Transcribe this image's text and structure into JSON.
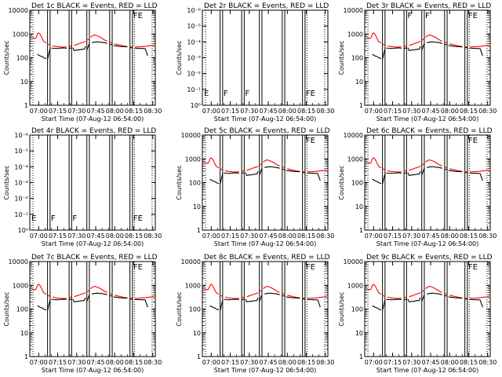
{
  "chart_data": [
    {
      "type": "line",
      "title": "Det 1c BLACK = Events, RED = LLD",
      "ylabel": "Counts/sec",
      "xlabel": "Start Time (07-Aug-12 06:54:00)",
      "yscale": "log",
      "ylim": [
        1,
        10000
      ],
      "ytick_labels": [
        "1",
        "10",
        "100",
        "1000",
        "10000"
      ],
      "xtick_labels": [
        "07:00",
        "07:15",
        "07:30",
        "07:45",
        "08:00",
        "08:15",
        "08:30"
      ],
      "event_labels": [
        "",
        "",
        "",
        "",
        "",
        "",
        "FE"
      ],
      "has_data": true,
      "series": [
        {
          "name": "Events",
          "color": "#000000"
        },
        {
          "name": "LLD",
          "color": "#ff0000"
        }
      ]
    },
    {
      "type": "line",
      "title": "Det 2r BLACK = Events, RED = LLD",
      "ylabel": "Counts/sec",
      "xlabel": "Start Time (07-Aug-12 06:54:00)",
      "yscale": "log",
      "ylim": [
        1,
        1e-06
      ],
      "ytick_labels": [
        "10⁰",
        "10⁻¹",
        "10⁻²",
        "10⁻³",
        "10⁻⁴",
        "10⁻⁵",
        "10⁻⁶"
      ],
      "xtick_labels": [
        "07:00",
        "07:15",
        "07:30",
        "07:45",
        "08:00",
        "08:15",
        "08:30"
      ],
      "event_labels": [
        "E",
        "F",
        "",
        "F",
        "",
        "",
        "FE"
      ],
      "has_data": false,
      "series": []
    },
    {
      "type": "line",
      "title": "Det 3r BLACK = Events, RED = LLD",
      "ylabel": "Counts/sec",
      "xlabel": "Start Time (07-Aug-12 06:54:00)",
      "yscale": "log",
      "ylim": [
        1,
        10000
      ],
      "ytick_labels": [
        "1",
        "10",
        "100",
        "1000",
        "10000"
      ],
      "xtick_labels": [
        "07:00",
        "07:15",
        "07:30",
        "07:45",
        "08:00",
        "08:15",
        "08:30"
      ],
      "event_labels": [
        "",
        "",
        "",
        "F",
        "F",
        "",
        "FE"
      ],
      "has_data": true,
      "series": [
        {
          "name": "Events",
          "color": "#000000"
        },
        {
          "name": "LLD",
          "color": "#ff0000"
        }
      ]
    },
    {
      "type": "line",
      "title": "Det 4r BLACK = Events, RED = LLD",
      "ylabel": "Counts/sec",
      "xlabel": "Start Time (07-Aug-12 06:54:00)",
      "yscale": "log",
      "ylim": [
        1,
        1e-06
      ],
      "ytick_labels": [
        "10⁰",
        "10⁻¹",
        "10⁻²",
        "10⁻³",
        "10⁻⁴",
        "10⁻⁵",
        "10⁻⁶"
      ],
      "xtick_labels": [
        "07:00",
        "07:15",
        "07:30",
        "07:45",
        "08:00",
        "08:15",
        "08:30"
      ],
      "event_labels": [
        "E",
        "F",
        "",
        "F",
        "",
        "",
        "FE"
      ],
      "has_data": false,
      "series": []
    },
    {
      "type": "line",
      "title": "Det 5c BLACK = Events, RED = LLD",
      "ylabel": "Counts/sec",
      "xlabel": "Start Time (07-Aug-12 06:54:00)",
      "yscale": "log",
      "ylim": [
        1,
        10000
      ],
      "ytick_labels": [
        "1",
        "10",
        "100",
        "1000",
        "10000"
      ],
      "xtick_labels": [
        "07:00",
        "07:15",
        "07:30",
        "07:45",
        "08:00",
        "08:15",
        "08:30"
      ],
      "event_labels": [
        "",
        "",
        "",
        "",
        "",
        "",
        "FE"
      ],
      "has_data": true,
      "series": [
        {
          "name": "Events",
          "color": "#000000"
        },
        {
          "name": "LLD",
          "color": "#ff0000"
        }
      ]
    },
    {
      "type": "line",
      "title": "Det 6c BLACK = Events, RED = LLD",
      "ylabel": "Counts/sec",
      "xlabel": "Start Time (07-Aug-12 06:54:00)",
      "yscale": "log",
      "ylim": [
        1,
        10000
      ],
      "ytick_labels": [
        "1",
        "10",
        "100",
        "1000",
        "10000"
      ],
      "xtick_labels": [
        "07:00",
        "07:15",
        "07:30",
        "07:45",
        "08:00",
        "08:15",
        "08:30"
      ],
      "event_labels": [
        "",
        "",
        "",
        "",
        "",
        "",
        "FE"
      ],
      "has_data": true,
      "series": [
        {
          "name": "Events",
          "color": "#000000"
        },
        {
          "name": "LLD",
          "color": "#ff0000"
        }
      ]
    },
    {
      "type": "line",
      "title": "Det 7c BLACK = Events, RED = LLD",
      "ylabel": "Counts/sec",
      "xlabel": "Start Time (07-Aug-12 06:54:00)",
      "yscale": "log",
      "ylim": [
        1,
        10000
      ],
      "ytick_labels": [
        "1",
        "10",
        "100",
        "1000",
        "10000"
      ],
      "xtick_labels": [
        "07:00",
        "07:15",
        "07:30",
        "07:45",
        "08:00",
        "08:15",
        "08:30"
      ],
      "event_labels": [
        "",
        "",
        "",
        "",
        "",
        "",
        "FE"
      ],
      "has_data": true,
      "series": [
        {
          "name": "Events",
          "color": "#000000"
        },
        {
          "name": "LLD",
          "color": "#ff0000"
        }
      ]
    },
    {
      "type": "line",
      "title": "Det 8c BLACK = Events, RED = LLD",
      "ylabel": "Counts/sec",
      "xlabel": "Start Time (07-Aug-12 06:54:00)",
      "yscale": "log",
      "ylim": [
        1,
        10000
      ],
      "ytick_labels": [
        "1",
        "10",
        "100",
        "1000",
        "10000"
      ],
      "xtick_labels": [
        "07:00",
        "07:15",
        "07:30",
        "07:45",
        "08:00",
        "08:15",
        "08:30"
      ],
      "event_labels": [
        "",
        "",
        "",
        "",
        "",
        "",
        "FE"
      ],
      "has_data": true,
      "series": [
        {
          "name": "Events",
          "color": "#000000"
        },
        {
          "name": "LLD",
          "color": "#ff0000"
        }
      ]
    },
    {
      "type": "line",
      "title": "Det 9c BLACK = Events, RED = LLD",
      "ylabel": "Counts/sec",
      "xlabel": "Start Time (07-Aug-12 06:54:00)",
      "yscale": "log",
      "ylim": [
        1,
        10000
      ],
      "ytick_labels": [
        "1",
        "10",
        "100",
        "1000",
        "10000"
      ],
      "xtick_labels": [
        "07:00",
        "07:15",
        "07:30",
        "07:45",
        "08:00",
        "08:15",
        "08:30"
      ],
      "event_labels": [
        "",
        "",
        "",
        "",
        "",
        "",
        "FE"
      ],
      "has_data": true,
      "series": [
        {
          "name": "Events",
          "color": "#000000"
        },
        {
          "name": "LLD",
          "color": "#ff0000"
        }
      ]
    }
  ],
  "time_axis": {
    "start": "07-Aug-12 06:54:00",
    "range_min": [
      -1,
      98
    ],
    "tick_min": [
      6,
      21,
      36,
      51,
      66,
      81,
      96
    ]
  },
  "gaps_min": [
    [
      13,
      15
    ],
    [
      30,
      32
    ],
    [
      44,
      46
    ],
    [
      62,
      64
    ],
    [
      78,
      80
    ]
  ],
  "dotted_lines_min": [
    1.5,
    81.5,
    95.5
  ],
  "lld_counts_per_sec": {
    "t": [
      1,
      3,
      4,
      5,
      6,
      7,
      8,
      9,
      10,
      12,
      13,
      15,
      17,
      19,
      22,
      25,
      28,
      30,
      32,
      34,
      36,
      38,
      40,
      42,
      43,
      44,
      46,
      47,
      48,
      49,
      50,
      51,
      52,
      54,
      56,
      58,
      60,
      62,
      64,
      66,
      68,
      70,
      72,
      74,
      76,
      78,
      80,
      82,
      84,
      86,
      88,
      90,
      92,
      94,
      96,
      97
    ],
    "v": [
      700,
      640,
      700,
      1000,
      1100,
      1000,
      800,
      600,
      480,
      420,
      380,
      340,
      320,
      300,
      285,
      280,
      285,
      300,
      320,
      330,
      360,
      390,
      430,
      460,
      500,
      540,
      620,
      720,
      820,
      860,
      900,
      880,
      840,
      760,
      650,
      560,
      500,
      460,
      420,
      390,
      360,
      340,
      320,
      305,
      295,
      285,
      280,
      280,
      285,
      290,
      295,
      300,
      310,
      320,
      330,
      340
    ]
  },
  "events_counts_per_sec": {
    "t": [
      5,
      7,
      9,
      10,
      11,
      12,
      13,
      15,
      16,
      18,
      20,
      22,
      24,
      26,
      28,
      30,
      32,
      33,
      34,
      36,
      38,
      40,
      42,
      43,
      44,
      46,
      48,
      50,
      52,
      54,
      56,
      58,
      60,
      62,
      64,
      65,
      66,
      68,
      70,
      72,
      74,
      76,
      78,
      80,
      82,
      84,
      86,
      88,
      90,
      92
    ],
    "v": [
      140,
      120,
      110,
      100,
      95,
      92,
      88,
      240,
      255,
      250,
      245,
      250,
      255,
      260,
      250,
      245,
      260,
      265,
      200,
      210,
      215,
      225,
      230,
      300,
      210,
      400,
      430,
      450,
      470,
      460,
      445,
      430,
      400,
      370,
      350,
      330,
      320,
      310,
      300,
      295,
      290,
      285,
      270,
      260,
      255,
      250,
      248,
      245,
      240,
      120
    ]
  }
}
